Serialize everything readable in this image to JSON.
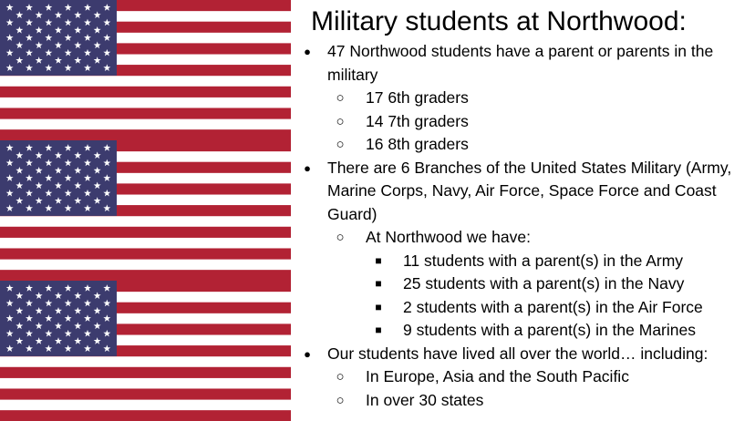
{
  "slide": {
    "title": "Military students at Northwood:",
    "bullets": {
      "b1": "47 Northwood students have a parent or parents in the military",
      "b1_sub": [
        "17 6th graders",
        "14 7th graders",
        "16 8th graders"
      ],
      "b2": "There are 6 Branches of the United States Military (Army, Marine Corps, Navy, Air Force, Space Force and Coast Guard)",
      "b2_sub": "At Northwood we have:",
      "b2_subsub": [
        "11 students with a parent(s) in the Army",
        "25 students with a parent(s) in the Navy",
        "2 students with a parent(s) in the Air Force",
        "9 students with a parent(s) in the Marines"
      ],
      "b3": "Our students have lived all over the world… including:",
      "b3_sub": [
        "In Europe, Asia and the South Pacific",
        "In over 30 states"
      ]
    },
    "glyphs": {
      "disc": "●",
      "circle": "○",
      "square": "■"
    }
  },
  "colors": {
    "flag_red": "#b22234",
    "flag_blue": "#3c3b6e",
    "flag_white": "#ffffff"
  },
  "icons": [
    "us-flag"
  ]
}
